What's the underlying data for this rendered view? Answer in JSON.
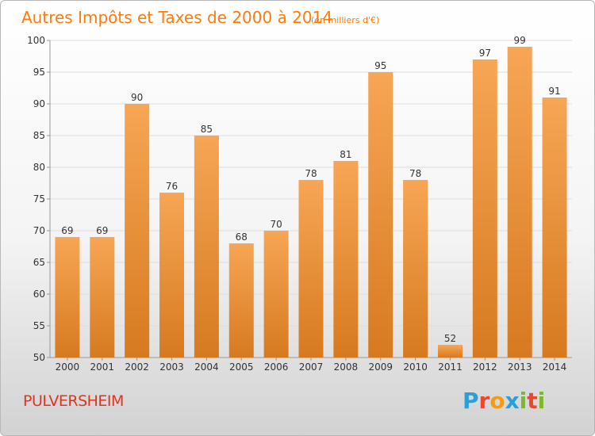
{
  "header": {
    "title": "Autres Impôts et Taxes de 2000 à 2014",
    "unit": "(en milliers d'€)"
  },
  "footer": {
    "commune": "PULVERSHEIM",
    "logo_text": "Proxiti",
    "logo_letters": [
      {
        "char": "P",
        "color": "#2a9fd8"
      },
      {
        "char": "r",
        "color": "#e8482c"
      },
      {
        "char": "o",
        "color": "#f39c12"
      },
      {
        "char": "x",
        "color": "#2a9fd8"
      },
      {
        "char": "i",
        "color": "#7cb829"
      },
      {
        "char": "t",
        "color": "#e8482c"
      },
      {
        "char": "i",
        "color": "#7cb829"
      }
    ]
  },
  "colors": {
    "bar_light": "#f7a655",
    "bar_dark": "#d97a1f",
    "title": "#ff7a0a",
    "commune": "#e0341f"
  },
  "chart_data": {
    "type": "bar",
    "title": "Autres Impôts et Taxes de 2000 à 2014",
    "subtitle": "(en milliers d'€)",
    "categories": [
      "2000",
      "2001",
      "2002",
      "2003",
      "2004",
      "2005",
      "2006",
      "2007",
      "2008",
      "2009",
      "2010",
      "2011",
      "2012",
      "2013",
      "2014"
    ],
    "values": [
      69,
      69,
      90,
      76,
      85,
      68,
      70,
      78,
      81,
      95,
      78,
      52,
      97,
      99,
      91
    ],
    "ylim": [
      50,
      100
    ],
    "yticks": [
      50,
      55,
      60,
      65,
      70,
      75,
      80,
      85,
      90,
      95,
      100
    ],
    "grid": true,
    "legend": "none"
  }
}
